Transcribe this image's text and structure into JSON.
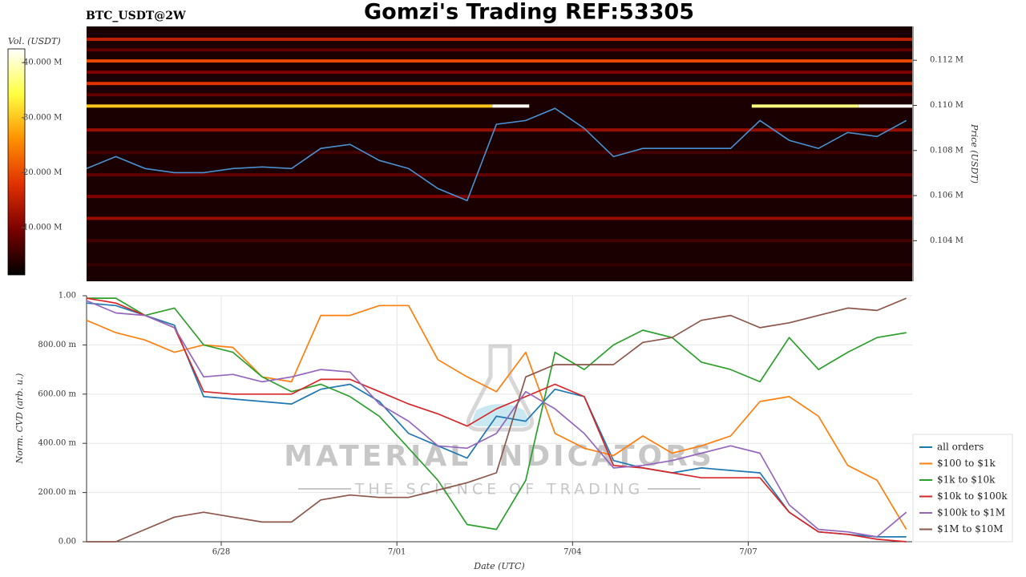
{
  "title": "Gomzi's Trading REF:53305",
  "watermark": {
    "title": "MATERIAL INDICATORS",
    "subtitle": "THE SCIENCE OF TRADING"
  },
  "chart_data": [
    {
      "type": "heatmap",
      "title": "BTC_USDT@2W",
      "y_label": "Price (USDT)",
      "xlim": [
        25.7,
        39.8
      ],
      "ylim": [
        102200,
        113500
      ],
      "yticks": [
        {
          "value": 104000,
          "label": "0.104 M"
        },
        {
          "value": 106000,
          "label": "0.106 M"
        },
        {
          "value": 108000,
          "label": "0.108 M"
        },
        {
          "value": 110000,
          "label": "0.110 M"
        },
        {
          "value": 112000,
          "label": "0.112 M"
        }
      ],
      "colorbar": {
        "label": "Vol. (USDT)",
        "lim": [
          1400000,
          42500000
        ],
        "ticks": [
          {
            "value": 10000000,
            "label": "10.000 M"
          },
          {
            "value": 20000000,
            "label": "20.000 M"
          },
          {
            "value": 30000000,
            "label": "30.000 M"
          },
          {
            "value": 40000000,
            "label": "40.000 M"
          }
        ],
        "colorscale": [
          "#000000",
          "#7a0000",
          "#e03000",
          "#ff9000",
          "#ffff40",
          "#ffffff"
        ]
      },
      "bands": [
        {
          "price": 112930,
          "volume": 15000000,
          "x": [
            25.7,
            39.8
          ]
        },
        {
          "price": 112460,
          "volume": 8000000,
          "x": [
            25.7,
            39.8
          ]
        },
        {
          "price": 111970,
          "volume": 20000000,
          "x": [
            25.7,
            39.8
          ]
        },
        {
          "price": 111470,
          "volume": 10000000,
          "x": [
            25.7,
            39.8
          ]
        },
        {
          "price": 110970,
          "volume": 18000000,
          "x": [
            25.7,
            39.8
          ]
        },
        {
          "price": 110470,
          "volume": 8000000,
          "x": [
            25.7,
            39.8
          ]
        },
        {
          "price": 109970,
          "volume": 30000000,
          "x": [
            25.7,
            32.63
          ]
        },
        {
          "price": 109970,
          "volume": 42000000,
          "x": [
            32.63,
            33.26
          ]
        },
        {
          "price": 109970,
          "volume": 37000000,
          "x": [
            37.06,
            38.88
          ]
        },
        {
          "price": 109970,
          "volume": 42000000,
          "x": [
            38.88,
            39.8
          ]
        },
        {
          "price": 108910,
          "volume": 12000000,
          "x": [
            25.7,
            39.8
          ]
        },
        {
          "price": 107910,
          "volume": 6000000,
          "x": [
            25.7,
            39.8
          ]
        },
        {
          "price": 106920,
          "volume": 8000000,
          "x": [
            25.7,
            39.8
          ]
        },
        {
          "price": 105960,
          "volume": 10000000,
          "x": [
            25.7,
            39.8
          ]
        },
        {
          "price": 104990,
          "volume": 12000000,
          "x": [
            25.7,
            39.8
          ]
        },
        {
          "price": 104000,
          "volume": 6000000,
          "x": [
            25.7,
            39.8
          ]
        },
        {
          "price": 102930,
          "volume": 5000000,
          "x": [
            25.7,
            39.8
          ]
        }
      ],
      "line": {
        "color": "#4a90d0",
        "x": [
          25.7,
          26.2,
          26.7,
          27.2,
          27.7,
          28.2,
          28.7,
          29.2,
          29.7,
          30.2,
          30.7,
          31.2,
          31.7,
          32.2,
          32.7,
          33.2,
          33.7,
          34.2,
          34.7,
          35.2,
          35.7,
          36.2,
          36.7,
          37.2,
          37.7,
          38.2,
          38.7,
          39.2,
          39.7
        ],
        "values": [
          107200,
          107730,
          107200,
          107020,
          107020,
          107200,
          107270,
          107200,
          108090,
          108270,
          107560,
          107200,
          106310,
          105780,
          109160,
          109330,
          109870,
          108980,
          107730,
          108090,
          108090,
          108090,
          108090,
          109330,
          108450,
          108090,
          108800,
          108620,
          109330
        ]
      }
    },
    {
      "type": "line",
      "x_label": "Date (UTC)",
      "y_label": "Norm. CVD (arb. u.)",
      "xlim": [
        25.7,
        39.8
      ],
      "ylim": [
        0,
        1
      ],
      "xticks": [
        {
          "value": 28,
          "label": "6/28"
        },
        {
          "value": 31,
          "label": "7/01"
        },
        {
          "value": 34,
          "label": "7/04"
        },
        {
          "value": 37,
          "label": "7/07"
        }
      ],
      "yticks": [
        {
          "value": 0,
          "label": "0.00"
        },
        {
          "value": 0.2,
          "label": "200.00 m"
        },
        {
          "value": 0.4,
          "label": "400.00 m"
        },
        {
          "value": 0.6,
          "label": "600.00 m"
        },
        {
          "value": 0.8,
          "label": "800.00 m"
        },
        {
          "value": 1,
          "label": "1.00"
        }
      ],
      "grid": true,
      "legend": "lower right",
      "x": [
        25.7,
        26.2,
        26.7,
        27.2,
        27.7,
        28.2,
        28.7,
        29.2,
        29.7,
        30.2,
        30.7,
        31.2,
        31.7,
        32.2,
        32.7,
        33.2,
        33.7,
        34.2,
        34.7,
        35.2,
        35.7,
        36.2,
        36.7,
        37.2,
        37.7,
        38.2,
        38.7,
        39.2,
        39.7
      ],
      "series": [
        {
          "name": "all orders",
          "color": "#1f77b4",
          "values": [
            0.97,
            0.96,
            0.92,
            0.88,
            0.59,
            0.58,
            0.57,
            0.56,
            0.62,
            0.64,
            0.57,
            0.44,
            0.39,
            0.34,
            0.51,
            0.49,
            0.62,
            0.59,
            0.33,
            0.3,
            0.28,
            0.3,
            0.29,
            0.28,
            0.12,
            0.04,
            0.03,
            0.02,
            0.02
          ]
        },
        {
          "name": "$100 to $1k",
          "color": "#ff7f0e",
          "values": [
            0.9,
            0.85,
            0.82,
            0.77,
            0.8,
            0.79,
            0.67,
            0.65,
            0.92,
            0.92,
            0.96,
            0.96,
            0.74,
            0.67,
            0.61,
            0.77,
            0.44,
            0.38,
            0.35,
            0.43,
            0.36,
            0.39,
            0.43,
            0.57,
            0.59,
            0.51,
            0.31,
            0.25,
            0.05
          ]
        },
        {
          "name": "$1k to $10k",
          "color": "#2ca02c",
          "values": [
            0.99,
            0.99,
            0.92,
            0.95,
            0.8,
            0.77,
            0.67,
            0.61,
            0.64,
            0.59,
            0.51,
            0.38,
            0.25,
            0.07,
            0.05,
            0.25,
            0.77,
            0.7,
            0.8,
            0.86,
            0.83,
            0.73,
            0.7,
            0.65,
            0.83,
            0.7,
            0.77,
            0.83,
            0.85
          ]
        },
        {
          "name": "$10k to $100k",
          "color": "#d62728",
          "values": [
            0.99,
            0.97,
            0.92,
            0.87,
            0.61,
            0.6,
            0.6,
            0.6,
            0.66,
            0.66,
            0.61,
            0.56,
            0.52,
            0.47,
            0.54,
            0.59,
            0.64,
            0.59,
            0.31,
            0.3,
            0.28,
            0.26,
            0.26,
            0.26,
            0.12,
            0.04,
            0.03,
            0.01,
            0.0
          ]
        },
        {
          "name": "$100k to $1M",
          "color": "#9467bd",
          "values": [
            0.98,
            0.93,
            0.92,
            0.87,
            0.67,
            0.68,
            0.65,
            0.67,
            0.7,
            0.69,
            0.56,
            0.49,
            0.39,
            0.38,
            0.44,
            0.61,
            0.54,
            0.44,
            0.3,
            0.31,
            0.33,
            0.36,
            0.39,
            0.36,
            0.15,
            0.05,
            0.04,
            0.02,
            0.12
          ]
        },
        {
          "name": "$1M to $10M",
          "color": "#8c564b",
          "values": [
            0,
            0,
            0.05,
            0.1,
            0.12,
            0.1,
            0.08,
            0.08,
            0.17,
            0.19,
            0.18,
            0.18,
            0.21,
            0.24,
            0.28,
            0.67,
            0.72,
            0.72,
            0.72,
            0.81,
            0.83,
            0.9,
            0.92,
            0.87,
            0.89,
            0.92,
            0.95,
            0.94,
            0.99
          ]
        }
      ]
    }
  ]
}
